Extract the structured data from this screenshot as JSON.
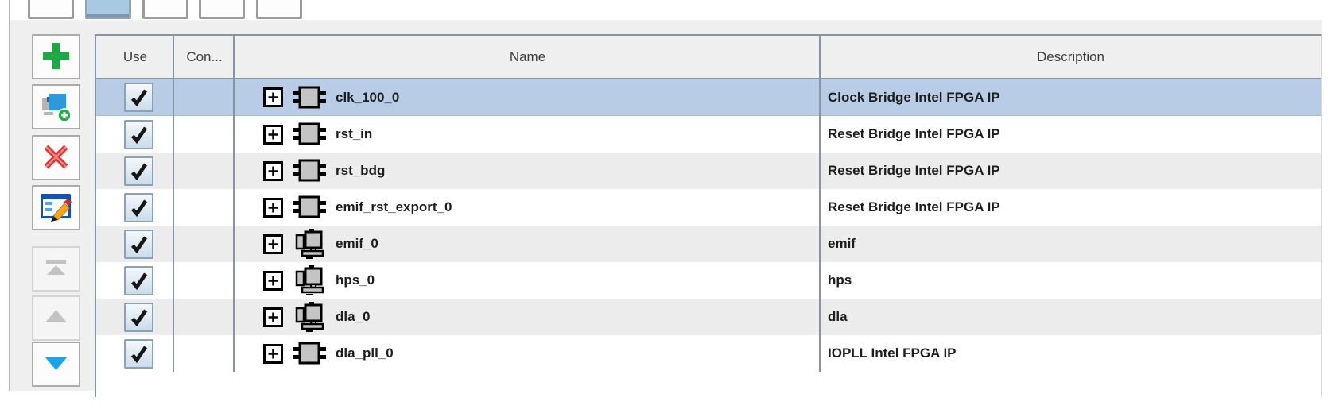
{
  "top_tabs": {
    "count": 5,
    "selected_index": 1
  },
  "side_toolbar": {
    "buttons": [
      {
        "id": "add",
        "icon": "plus-icon",
        "enabled": true
      },
      {
        "id": "add-subsystem",
        "icon": "add-subsystem-icon",
        "enabled": true
      },
      {
        "id": "remove",
        "icon": "remove-x-icon",
        "enabled": true
      },
      {
        "id": "edit",
        "icon": "edit-pencil-icon",
        "enabled": true
      },
      {
        "id": "move-top",
        "icon": "move-to-top-icon",
        "enabled": false
      },
      {
        "id": "move-up",
        "icon": "move-up-icon",
        "enabled": false
      },
      {
        "id": "move-down",
        "icon": "move-down-icon",
        "enabled": true
      }
    ]
  },
  "table": {
    "columns": [
      "Use",
      "Con...",
      "Name",
      "Description"
    ],
    "rows": [
      {
        "use": true,
        "connections": "",
        "icon": "ip-component-icon",
        "name": "clk_100_0",
        "description": "Clock Bridge Intel FPGA IP",
        "selected": true
      },
      {
        "use": true,
        "connections": "",
        "icon": "ip-component-icon",
        "name": "rst_in",
        "description": "Reset Bridge Intel FPGA IP",
        "selected": false
      },
      {
        "use": true,
        "connections": "",
        "icon": "ip-component-icon",
        "name": "rst_bdg",
        "description": "Reset Bridge Intel FPGA IP",
        "selected": false
      },
      {
        "use": true,
        "connections": "",
        "icon": "ip-component-icon",
        "name": "emif_rst_export_0",
        "description": "Reset Bridge Intel FPGA IP",
        "selected": false
      },
      {
        "use": true,
        "connections": "",
        "icon": "subsystem-icon",
        "name": "emif_0",
        "description": "emif",
        "selected": false
      },
      {
        "use": true,
        "connections": "",
        "icon": "subsystem-icon",
        "name": "hps_0",
        "description": "hps",
        "selected": false
      },
      {
        "use": true,
        "connections": "",
        "icon": "subsystem-icon",
        "name": "dla_0",
        "description": "dla",
        "selected": false
      },
      {
        "use": true,
        "connections": "",
        "icon": "ip-component-icon",
        "name": "dla_pll_0",
        "description": "IOPLL Intel FPGA IP",
        "selected": false
      }
    ]
  },
  "colors": {
    "selection": "#b8cde5",
    "row_stripe": "#ececec",
    "grid_line": "#8495a5",
    "header_bg": "#efefef",
    "tab_accent": "#a9c8e2",
    "add_green": "#1fa845",
    "remove_red": "#e33434",
    "move_blue": "#1ba3e8"
  }
}
